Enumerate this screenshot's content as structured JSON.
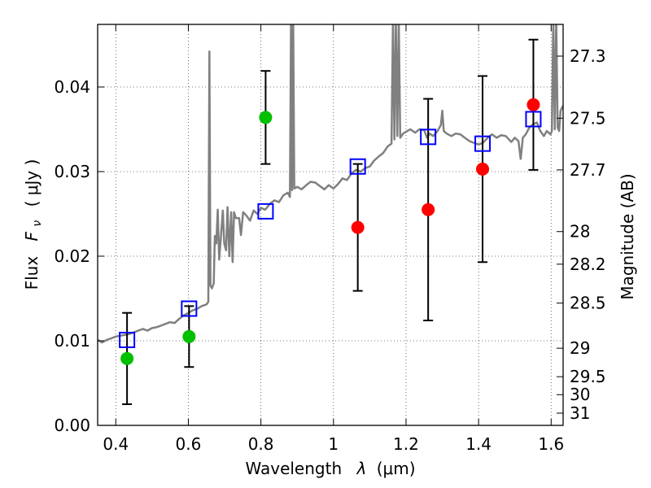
{
  "chart_data": {
    "type": "scatter",
    "xlabel": {
      "text": "Wavelength",
      "symbol": "λ",
      "unit": "(μm)"
    },
    "ylabel": {
      "text": "Flux",
      "symbol": "F",
      "subscript": "ν",
      "unit": "( μJy )"
    },
    "y2label": "Magnitude (AB)",
    "xlim": [
      0.35,
      1.633
    ],
    "ylim": [
      0,
      0.0474
    ],
    "grid": true,
    "x_tick_labels": [
      "0.4",
      "0.6",
      "0.8",
      "1",
      "1.2",
      "1.4",
      "1.6"
    ],
    "y_tick_labels": [
      "0.00",
      "0.01",
      "0.02",
      "0.03",
      "0.04"
    ],
    "y2_tick_labels": [
      "27.3",
      "27.5",
      "27.7",
      "28",
      "28.2",
      "28.5",
      "29",
      "29.5",
      "30",
      "31"
    ],
    "series": [
      {
        "type": "line",
        "color": "#808080",
        "points": [
          [
            0.35,
            0.0101
          ],
          [
            0.362,
            0.0098
          ],
          [
            0.375,
            0.0101
          ],
          [
            0.388,
            0.0103
          ],
          [
            0.4,
            0.0105
          ],
          [
            0.412,
            0.0106
          ],
          [
            0.425,
            0.0107
          ],
          [
            0.437,
            0.0108
          ],
          [
            0.45,
            0.011
          ],
          [
            0.462,
            0.0112
          ],
          [
            0.475,
            0.0114
          ],
          [
            0.487,
            0.0112
          ],
          [
            0.5,
            0.0115
          ],
          [
            0.512,
            0.0116
          ],
          [
            0.525,
            0.0118
          ],
          [
            0.537,
            0.012
          ],
          [
            0.55,
            0.0122
          ],
          [
            0.562,
            0.0121
          ],
          [
            0.575,
            0.0126
          ],
          [
            0.587,
            0.013
          ],
          [
            0.6,
            0.0133
          ],
          [
            0.612,
            0.0136
          ],
          [
            0.625,
            0.0138
          ],
          [
            0.637,
            0.0141
          ],
          [
            0.65,
            0.0143
          ],
          [
            0.655,
            0.0146
          ],
          [
            0.658,
            0.0442
          ],
          [
            0.661,
            0.0165
          ],
          [
            0.665,
            0.0162
          ],
          [
            0.67,
            0.0168
          ],
          [
            0.673,
            0.0224
          ],
          [
            0.677,
            0.0215
          ],
          [
            0.681,
            0.0255
          ],
          [
            0.685,
            0.0196
          ],
          [
            0.69,
            0.0224
          ],
          [
            0.695,
            0.0254
          ],
          [
            0.699,
            0.0215
          ],
          [
            0.704,
            0.0207
          ],
          [
            0.708,
            0.0258
          ],
          [
            0.713,
            0.02
          ],
          [
            0.718,
            0.0252
          ],
          [
            0.722,
            0.0193
          ],
          [
            0.726,
            0.0252
          ],
          [
            0.731,
            0.0245
          ],
          [
            0.74,
            0.0245
          ],
          [
            0.745,
            0.0225
          ],
          [
            0.751,
            0.0252
          ],
          [
            0.76,
            0.0248
          ],
          [
            0.77,
            0.0242
          ],
          [
            0.78,
            0.0254
          ],
          [
            0.79,
            0.025
          ],
          [
            0.8,
            0.0257
          ],
          [
            0.812,
            0.0255
          ],
          [
            0.825,
            0.0262
          ],
          [
            0.837,
            0.0266
          ],
          [
            0.85,
            0.0264
          ],
          [
            0.862,
            0.0272
          ],
          [
            0.874,
            0.0275
          ],
          [
            0.88,
            0.027
          ],
          [
            0.883,
            0.048
          ],
          [
            0.886,
            0.0278
          ],
          [
            0.889,
            0.048
          ],
          [
            0.892,
            0.028
          ],
          [
            0.9,
            0.0282
          ],
          [
            0.912,
            0.0279
          ],
          [
            0.925,
            0.0284
          ],
          [
            0.937,
            0.0288
          ],
          [
            0.95,
            0.0287
          ],
          [
            0.962,
            0.0283
          ],
          [
            0.975,
            0.0279
          ],
          [
            0.987,
            0.0284
          ],
          [
            1.0,
            0.028
          ],
          [
            1.012,
            0.0285
          ],
          [
            1.025,
            0.0292
          ],
          [
            1.037,
            0.029
          ],
          [
            1.05,
            0.0298
          ],
          [
            1.062,
            0.0302
          ],
          [
            1.075,
            0.03
          ],
          [
            1.087,
            0.0304
          ],
          [
            1.1,
            0.0306
          ],
          [
            1.112,
            0.0313
          ],
          [
            1.125,
            0.0318
          ],
          [
            1.137,
            0.0322
          ],
          [
            1.15,
            0.033
          ],
          [
            1.16,
            0.0333
          ],
          [
            1.164,
            0.048
          ],
          [
            1.168,
            0.0338
          ],
          [
            1.172,
            0.048
          ],
          [
            1.176,
            0.0342
          ],
          [
            1.18,
            0.048
          ],
          [
            1.184,
            0.034
          ],
          [
            1.192,
            0.0345
          ],
          [
            1.2,
            0.0347
          ],
          [
            1.212,
            0.035
          ],
          [
            1.225,
            0.0346
          ],
          [
            1.237,
            0.035
          ],
          [
            1.25,
            0.0349
          ],
          [
            1.258,
            0.034
          ],
          [
            1.265,
            0.0345
          ],
          [
            1.275,
            0.0342
          ],
          [
            1.287,
            0.0348
          ],
          [
            1.296,
            0.0355
          ],
          [
            1.3,
            0.0372
          ],
          [
            1.304,
            0.0348
          ],
          [
            1.312,
            0.0345
          ],
          [
            1.325,
            0.0342
          ],
          [
            1.337,
            0.0345
          ],
          [
            1.35,
            0.0344
          ],
          [
            1.362,
            0.034
          ],
          [
            1.375,
            0.0336
          ],
          [
            1.387,
            0.0334
          ],
          [
            1.4,
            0.0332
          ],
          [
            1.412,
            0.0334
          ],
          [
            1.425,
            0.034
          ],
          [
            1.437,
            0.0344
          ],
          [
            1.45,
            0.034
          ],
          [
            1.462,
            0.0343
          ],
          [
            1.475,
            0.0342
          ],
          [
            1.49,
            0.0335
          ],
          [
            1.5,
            0.034
          ],
          [
            1.51,
            0.0336
          ],
          [
            1.516,
            0.0315
          ],
          [
            1.522,
            0.034
          ],
          [
            1.53,
            0.0344
          ],
          [
            1.54,
            0.0352
          ],
          [
            1.55,
            0.0356
          ],
          [
            1.561,
            0.0358
          ],
          [
            1.57,
            0.0348
          ],
          [
            1.58,
            0.0342
          ],
          [
            1.588,
            0.0348
          ],
          [
            1.598,
            0.0344
          ],
          [
            1.602,
            0.0348
          ],
          [
            1.606,
            0.048
          ],
          [
            1.61,
            0.035
          ],
          [
            1.614,
            0.048
          ],
          [
            1.618,
            0.0352
          ],
          [
            1.622,
            0.0348
          ],
          [
            1.626,
            0.0372
          ],
          [
            1.633,
            0.0378
          ]
        ]
      },
      {
        "type": "scatter",
        "marker": "open-square",
        "color": "#0000ff",
        "x": [
          0.431,
          0.602,
          0.813,
          1.067,
          1.261,
          1.411,
          1.551
        ],
        "y": [
          0.0101,
          0.0138,
          0.0253,
          0.0306,
          0.0341,
          0.0333,
          0.0362
        ]
      },
      {
        "type": "errorbar",
        "marker": "circle",
        "color": "#00c000",
        "x": [
          0.431,
          0.602,
          0.813
        ],
        "y": [
          0.0079,
          0.0105,
          0.0364
        ],
        "yerr": [
          0.0054,
          0.0036,
          0.0055
        ]
      },
      {
        "type": "errorbar",
        "marker": "circle",
        "color": "#ff0000",
        "x": [
          1.067,
          1.261,
          1.411,
          1.551
        ],
        "y": [
          0.0234,
          0.0255,
          0.0303,
          0.0379
        ],
        "yerr": [
          0.0075,
          0.0131,
          0.011,
          0.0077
        ]
      }
    ]
  }
}
